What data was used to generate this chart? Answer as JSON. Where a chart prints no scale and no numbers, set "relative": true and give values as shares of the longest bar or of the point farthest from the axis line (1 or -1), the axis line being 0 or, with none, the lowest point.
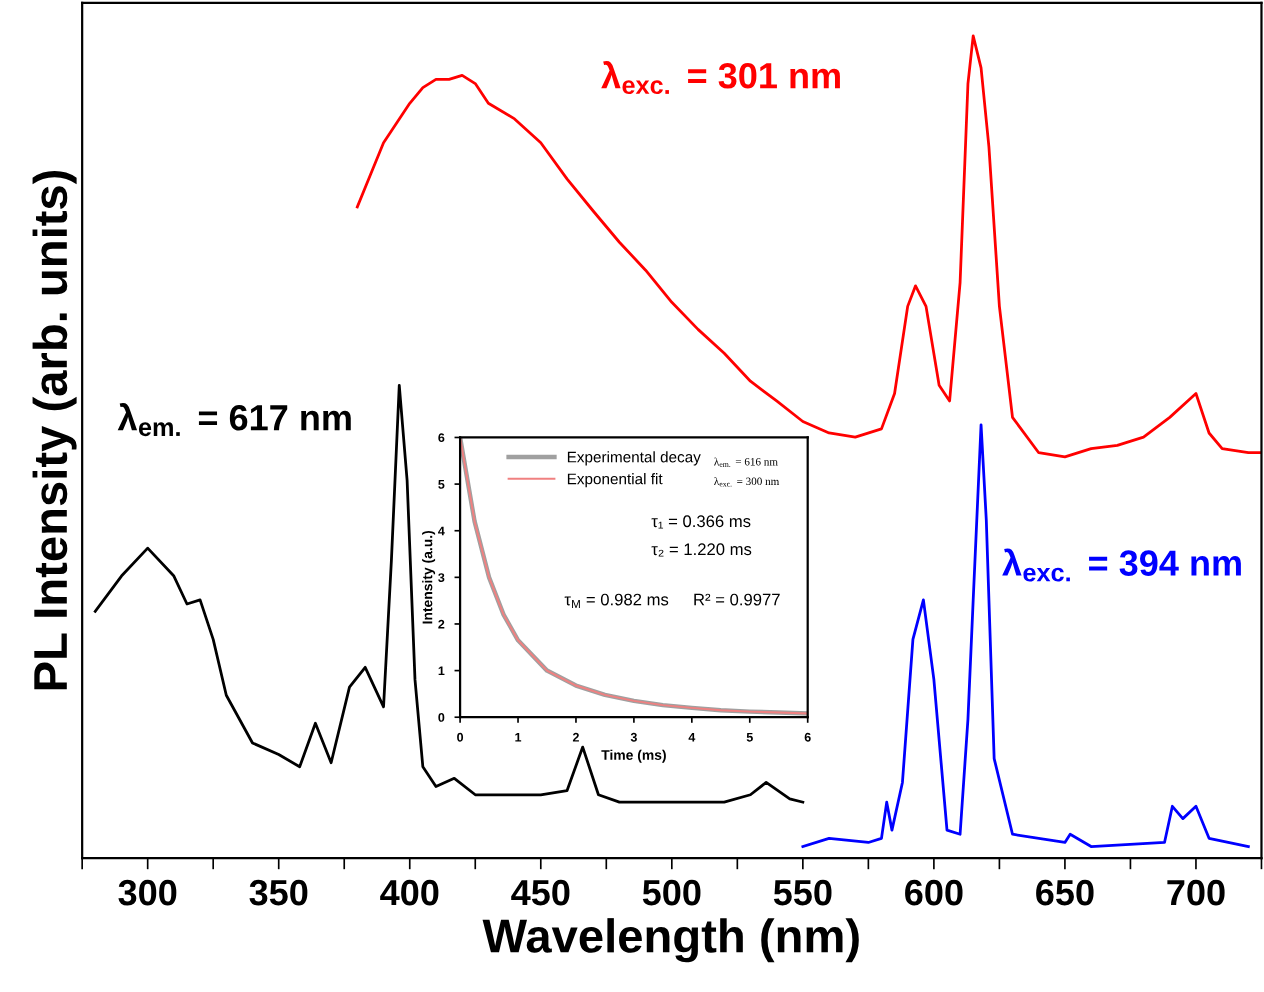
{
  "chart_data": [
    {
      "type": "line",
      "xlabel": "Wavelength (nm)",
      "ylabel": "PL Intensity (arb. units)",
      "relative": true,
      "xlim": [
        275,
        725
      ],
      "xticks": [
        {
          "value": 275,
          "label": null
        },
        300,
        {
          "value": 325,
          "label": null
        },
        350,
        {
          "value": 375,
          "label": null
        },
        400,
        {
          "value": 425,
          "label": null
        },
        450,
        {
          "value": 475,
          "label": null
        },
        500,
        {
          "value": 525,
          "label": null
        },
        550,
        {
          "value": 575,
          "label": null
        },
        600,
        {
          "value": 625,
          "label": null
        },
        650,
        {
          "value": 675,
          "label": null
        },
        700,
        {
          "value": 725,
          "label": null
        }
      ],
      "tick_labels": "x",
      "grid": false,
      "legend": false,
      "line_style": "solid",
      "marker": "none",
      "series": [
        {
          "name": "λ$_{exc.}$ = 301 nm",
          "color": "#ff0000",
          "x": [
            380,
            385,
            390,
            395,
            400,
            405,
            410,
            415,
            420,
            425,
            430,
            440,
            450,
            460,
            470,
            480,
            490,
            500,
            510,
            520,
            530,
            540,
            550,
            560,
            570,
            580,
            585,
            590,
            593,
            597,
            602,
            606,
            610,
            613,
            615,
            618,
            621,
            625,
            630,
            640,
            650,
            660,
            670,
            680,
            690,
            700,
            705,
            710,
            720,
            725
          ],
          "values": [
            0.792,
            0.831,
            0.87,
            0.894,
            0.918,
            0.937,
            0.947,
            0.947,
            0.952,
            0.942,
            0.918,
            0.899,
            0.87,
            0.826,
            0.787,
            0.749,
            0.715,
            0.676,
            0.643,
            0.614,
            0.58,
            0.556,
            0.531,
            0.517,
            0.512,
            0.522,
            0.565,
            0.671,
            0.696,
            0.671,
            0.575,
            0.556,
            0.7,
            0.942,
            1.0,
            0.961,
            0.865,
            0.671,
            0.536,
            0.493,
            0.488,
            0.498,
            0.502,
            0.512,
            0.536,
            0.565,
            0.517,
            0.498,
            0.493,
            0.493
          ]
        },
        {
          "name": "λ$_{em.}$ = 617 nm",
          "color": "#000000",
          "x": [
            280,
            290,
            300,
            310,
            315,
            320,
            325,
            330,
            340,
            350,
            358,
            364,
            370,
            377,
            383,
            390,
            393,
            396,
            399,
            402,
            405,
            410,
            417,
            425,
            450,
            460,
            466,
            472,
            480,
            500,
            520,
            530,
            536,
            545,
            550
          ],
          "values": [
            0.3,
            0.343,
            0.377,
            0.343,
            0.309,
            0.314,
            0.266,
            0.198,
            0.14,
            0.126,
            0.111,
            0.164,
            0.116,
            0.208,
            0.232,
            0.184,
            0.362,
            0.575,
            0.459,
            0.217,
            0.111,
            0.087,
            0.097,
            0.077,
            0.077,
            0.082,
            0.135,
            0.077,
            0.068,
            0.068,
            0.068,
            0.077,
            0.092,
            0.072,
            0.068
          ]
        },
        {
          "name": "λ$_{exc.}$ = 394 nm",
          "color": "#0000ff",
          "x": [
            550,
            560,
            575,
            580,
            582,
            584,
            588,
            592,
            596,
            600,
            605,
            610,
            613,
            615,
            618,
            620,
            623,
            630,
            650,
            652,
            660,
            688,
            691,
            695,
            700,
            705,
            720
          ],
          "values": [
            0.014,
            0.024,
            0.019,
            0.024,
            0.068,
            0.034,
            0.092,
            0.266,
            0.314,
            0.217,
            0.034,
            0.029,
            0.169,
            0.314,
            0.527,
            0.411,
            0.121,
            0.029,
            0.019,
            0.029,
            0.014,
            0.019,
            0.063,
            0.048,
            0.063,
            0.024,
            0.014
          ]
        }
      ]
    },
    {
      "type": "line",
      "xlabel": "Time (ms)",
      "ylabel": "Intensity (a.u.)",
      "xlim": [
        0,
        6
      ],
      "ylim": [
        0,
        6
      ],
      "xticks": [
        0,
        1,
        2,
        3,
        4,
        5,
        6
      ],
      "yticks": [
        0,
        1,
        2,
        3,
        4,
        5,
        6
      ],
      "grid": false,
      "legend": "top left",
      "line_style": "solid",
      "marker": "none",
      "annotations": [
        "λ$_{em.}$ = 616 nm",
        "λ$_{exc.}$ = 300 nm",
        "τ₁ = 0.366 ms",
        "τ₂ = 1.220 ms",
        "τ$_{M}$ = 0.982 ms",
        "R² = 0.9977"
      ],
      "series": [
        {
          "name": "Experimental decay",
          "color": "#a0a0a0",
          "x": [
            0,
            0.25,
            0.5,
            0.75,
            1,
            1.5,
            2,
            2.5,
            3,
            3.5,
            4,
            4.5,
            5,
            5.5,
            6
          ],
          "values": [
            6.0,
            4.2,
            3.0,
            2.2,
            1.65,
            1.0,
            0.68,
            0.48,
            0.35,
            0.26,
            0.2,
            0.15,
            0.12,
            0.1,
            0.08
          ]
        },
        {
          "name": "Exponential fit",
          "color": "#f08080",
          "x": [
            0,
            0.25,
            0.5,
            0.75,
            1,
            1.5,
            2,
            2.5,
            3,
            3.5,
            4,
            4.5,
            5,
            5.5,
            6
          ],
          "values": [
            6.0,
            4.2,
            3.0,
            2.2,
            1.65,
            1.0,
            0.68,
            0.48,
            0.35,
            0.26,
            0.2,
            0.15,
            0.12,
            0.1,
            0.08
          ]
        }
      ]
    }
  ]
}
